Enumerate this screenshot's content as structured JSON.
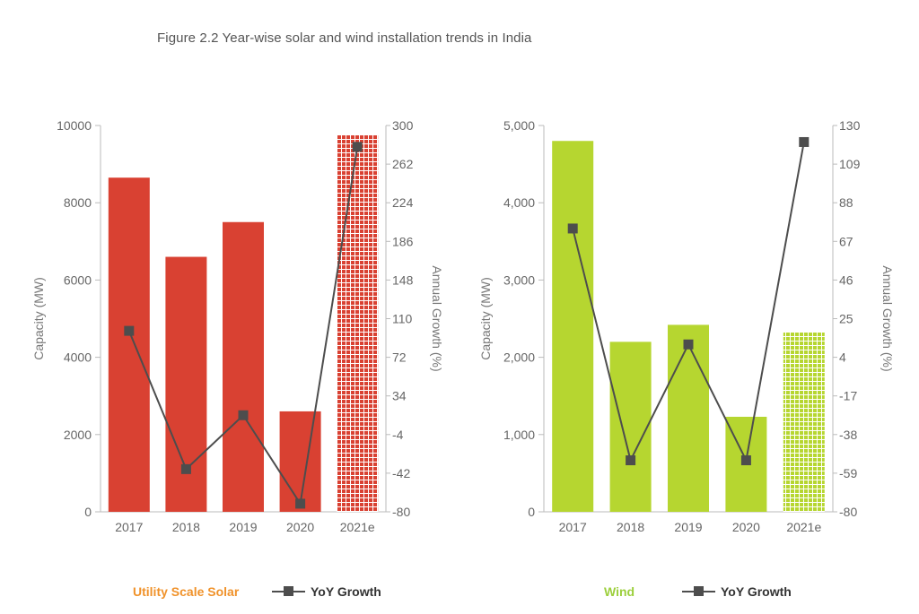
{
  "figure_title": "Figure 2.2 Year-wise solar and wind installation trends in India",
  "colors": {
    "solar_bar": "#d94132",
    "wind_bar": "#b6d630",
    "growth_line": "#4d4d4d",
    "solar_legend_text": "#f0922a",
    "wind_legend_text": "#9ccf3c",
    "axis": "#bbbbbb"
  },
  "chart_data": [
    {
      "type": "bar",
      "title": "",
      "categories": [
        "2017",
        "2018",
        "2019",
        "2020",
        "2021e"
      ],
      "projected_categories": [
        "2021e"
      ],
      "ylabel": "Capacity (MW)",
      "y2label": "Annual Growth (%)",
      "ylim": [
        0,
        10000
      ],
      "y2lim": [
        -80,
        300
      ],
      "yticks": [
        "0",
        "2000",
        "4000",
        "6000",
        "8000",
        "10000"
      ],
      "y2ticks": [
        "-80",
        "-42",
        "-4",
        "34",
        "72",
        "110",
        "148",
        "186",
        "224",
        "262",
        "300"
      ],
      "series": [
        {
          "name": "Utility Scale Solar",
          "kind": "bar",
          "values": [
            8650,
            6600,
            7500,
            2600,
            9750
          ]
        },
        {
          "name": "YoY Growth",
          "kind": "line",
          "axis": "secondary",
          "values": [
            98,
            -38,
            15,
            -72,
            279
          ]
        }
      ],
      "legend": "bottom-center",
      "grid": false
    },
    {
      "type": "bar",
      "title": "",
      "categories": [
        "2017",
        "2018",
        "2019",
        "2020",
        "2021e"
      ],
      "projected_categories": [
        "2021e"
      ],
      "ylabel": "Capacity (MW)",
      "y2label": "Annual Growth (%)",
      "ylim": [
        0,
        5000
      ],
      "y2lim": [
        -80,
        130
      ],
      "yticks": [
        "0",
        "1,000",
        "2,000",
        "3,000",
        "4,000",
        "5,000"
      ],
      "y2ticks": [
        "-80",
        "-59",
        "-38",
        "-17",
        "4",
        "25",
        "46",
        "67",
        "88",
        "109",
        "130"
      ],
      "series": [
        {
          "name": "Wind",
          "kind": "bar",
          "values": [
            4800,
            2200,
            2420,
            1230,
            2320
          ]
        },
        {
          "name": "YoY Growth",
          "kind": "line",
          "axis": "secondary",
          "values": [
            74,
            -52,
            11,
            -52,
            121
          ]
        }
      ],
      "legend": "bottom-center",
      "grid": false
    }
  ]
}
